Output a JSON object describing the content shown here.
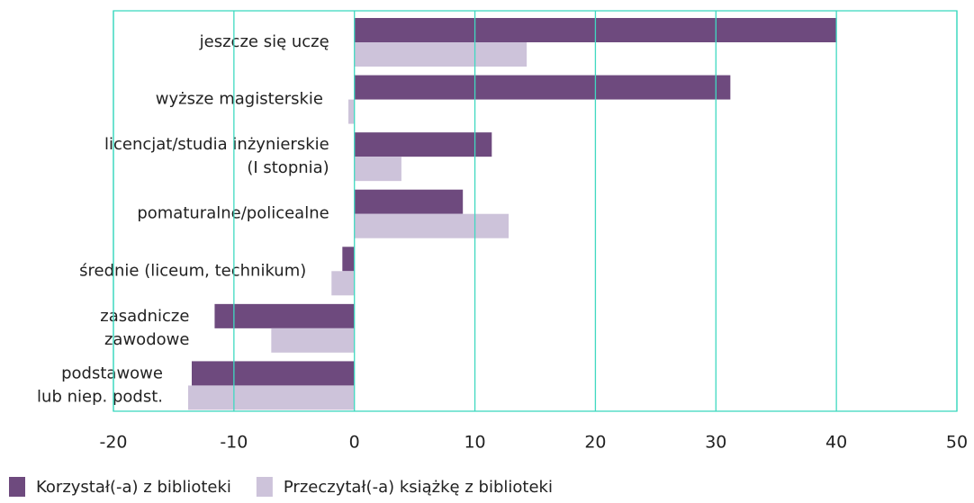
{
  "chart_data": {
    "type": "barh",
    "categories": [
      "jeszcze się uczę",
      "wyższe magisterskie",
      "licencjat/studia inżynierskie\n(I stopnia)",
      "pomaturalne/policealne",
      "średnie (liceum, technikum)",
      "zasadnicze\nzawodowe",
      "podstawowe\nlub niep. podst."
    ],
    "series": [
      {
        "name": "Korzystał(-a) z biblioteki",
        "color": "#6e4a7e",
        "values": [
          40,
          31.2,
          11.4,
          9.0,
          -1.0,
          -11.6,
          -13.5
        ]
      },
      {
        "name": "Przeczytał(-a) książkę z biblioteki",
        "color": "#cdc3da",
        "values": [
          14.3,
          -0.5,
          3.9,
          12.8,
          -1.9,
          -6.9,
          -13.8
        ]
      }
    ],
    "xlim": [
      -20,
      50
    ],
    "xticks": [
      -20,
      -10,
      0,
      10,
      20,
      30,
      40,
      50
    ],
    "grid": true,
    "grid_color": "#3fd9c0",
    "legend": "bottom"
  }
}
